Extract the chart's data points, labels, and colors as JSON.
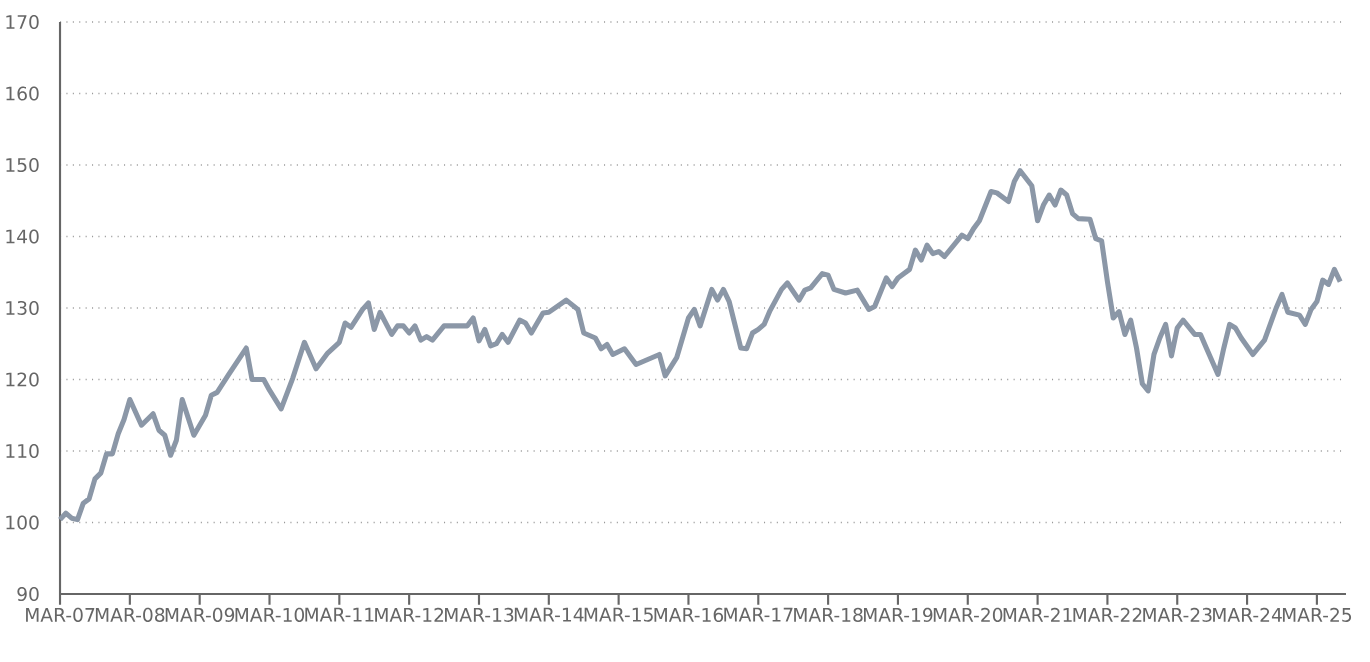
{
  "chart_data": {
    "type": "line",
    "color": "#8b97a7",
    "line_style": "solid",
    "grid": "y",
    "xlim": [
      "2007-03",
      "2025-08"
    ],
    "ylim": [
      90,
      170
    ],
    "yticks": [
      90,
      100,
      110,
      120,
      130,
      140,
      150,
      160,
      170
    ],
    "xticks": [
      {
        "value": "2007-03",
        "label": "MAR-07"
      },
      {
        "value": "2008-03",
        "label": "MAR-08"
      },
      {
        "value": "2009-03",
        "label": "MAR-09"
      },
      {
        "value": "2010-03",
        "label": "MAR-10"
      },
      {
        "value": "2011-03",
        "label": "MAR-11"
      },
      {
        "value": "2012-03",
        "label": "MAR-12"
      },
      {
        "value": "2013-03",
        "label": "MAR-13"
      },
      {
        "value": "2014-03",
        "label": "MAR-14"
      },
      {
        "value": "2015-03",
        "label": "MAR-15"
      },
      {
        "value": "2016-03",
        "label": "MAR-16"
      },
      {
        "value": "2017-03",
        "label": "MAR-17"
      },
      {
        "value": "2018-03",
        "label": "MAR-18"
      },
      {
        "value": "2019-03",
        "label": "MAR-19"
      },
      {
        "value": "2020-03",
        "label": "MAR-20"
      },
      {
        "value": "2021-03",
        "label": "MAR-21"
      },
      {
        "value": "2022-03",
        "label": "MAR-22"
      },
      {
        "value": "2023-03",
        "label": "MAR-23"
      },
      {
        "value": "2024-03",
        "label": "MAR-24"
      },
      {
        "value": "2025-03",
        "label": "MAR-25"
      }
    ],
    "x": [
      "2007-03",
      "2007-04",
      "2007-05",
      "2007-06",
      "2007-07",
      "2007-08",
      "2007-09",
      "2007-10",
      "2007-11",
      "2007-12",
      "2008-01",
      "2008-02",
      "2008-03",
      "2008-05",
      "2008-07",
      "2008-08",
      "2008-09",
      "2008-10",
      "2008-11",
      "2008-12",
      "2009-02",
      "2009-04",
      "2009-05",
      "2009-06",
      "2009-08",
      "2009-11",
      "2009-12",
      "2010-02",
      "2010-03",
      "2010-05",
      "2010-07",
      "2010-09",
      "2010-11",
      "2011-01",
      "2011-03",
      "2011-04",
      "2011-05",
      "2011-07",
      "2011-08",
      "2011-09",
      "2011-10",
      "2011-12",
      "2012-01",
      "2012-02",
      "2012-03",
      "2012-04",
      "2012-05",
      "2012-06",
      "2012-07",
      "2012-09",
      "2013-01",
      "2013-02",
      "2013-03",
      "2013-04",
      "2013-05",
      "2013-06",
      "2013-07",
      "2013-08",
      "2013-10",
      "2013-11",
      "2013-12",
      "2014-02",
      "2014-03",
      "2014-06",
      "2014-08",
      "2014-09",
      "2014-11",
      "2014-12",
      "2015-01",
      "2015-02",
      "2015-04",
      "2015-06",
      "2015-08",
      "2015-10",
      "2015-11",
      "2016-01",
      "2016-03",
      "2016-04",
      "2016-05",
      "2016-07",
      "2016-08",
      "2016-09",
      "2016-10",
      "2016-12",
      "2017-01",
      "2017-02",
      "2017-03",
      "2017-04",
      "2017-05",
      "2017-07",
      "2017-08",
      "2017-10",
      "2017-11",
      "2017-12",
      "2018-02",
      "2018-03",
      "2018-04",
      "2018-06",
      "2018-08",
      "2018-10",
      "2018-11",
      "2019-01",
      "2019-02",
      "2019-03",
      "2019-05",
      "2019-06",
      "2019-07",
      "2019-08",
      "2019-09",
      "2019-10",
      "2019-11",
      "2020-02",
      "2020-03",
      "2020-04",
      "2020-05",
      "2020-07",
      "2020-08",
      "2020-10",
      "2020-11",
      "2020-12",
      "2021-02",
      "2021-03",
      "2021-04",
      "2021-05",
      "2021-06",
      "2021-07",
      "2021-08",
      "2021-09",
      "2021-10",
      "2021-12",
      "2022-01",
      "2022-02",
      "2022-03",
      "2022-04",
      "2022-05",
      "2022-06",
      "2022-07",
      "2022-08",
      "2022-09",
      "2022-10",
      "2022-11",
      "2022-12",
      "2023-01",
      "2023-02",
      "2023-03",
      "2023-04",
      "2023-06",
      "2023-07",
      "2023-08",
      "2023-10",
      "2023-11",
      "2023-12",
      "2024-01",
      "2024-02",
      "2024-04",
      "2024-06",
      "2024-08",
      "2024-09",
      "2024-10",
      "2024-12",
      "2025-01",
      "2025-02",
      "2025-03",
      "2025-04",
      "2025-05",
      "2025-06",
      "2025-07"
    ],
    "values": [
      100.4,
      101.3,
      100.6,
      100.4,
      102.7,
      103.3,
      106.1,
      106.9,
      109.6,
      109.6,
      112.4,
      114.4,
      117.2,
      113.6,
      115.2,
      112.9,
      112.2,
      109.4,
      111.5,
      117.2,
      112.2,
      115,
      117.8,
      118.2,
      120.7,
      124.4,
      120,
      120,
      118.5,
      115.9,
      120.2,
      125.2,
      121.5,
      123.7,
      125.2,
      127.9,
      127.3,
      129.8,
      130.7,
      127,
      129.4,
      126.3,
      127.5,
      127.5,
      126.5,
      127.5,
      125.5,
      126,
      125.5,
      127.5,
      127.5,
      128.6,
      125.4,
      127,
      124.7,
      125,
      126.3,
      125.2,
      128.3,
      127.9,
      126.5,
      129.3,
      129.4,
      131.1,
      129.8,
      126.5,
      125.8,
      124.3,
      124.9,
      123.5,
      124.3,
      122.1,
      122.8,
      123.5,
      120.5,
      123.1,
      128.6,
      129.8,
      127.5,
      132.6,
      131.1,
      132.6,
      130.9,
      124.4,
      124.3,
      126.5,
      127,
      127.7,
      129.6,
      132.6,
      133.5,
      131.1,
      132.5,
      132.8,
      134.8,
      134.6,
      132.6,
      132.1,
      132.5,
      129.8,
      130.2,
      134.2,
      133,
      134.2,
      135.4,
      138.1,
      136.7,
      138.8,
      137.6,
      137.9,
      137.2,
      140.2,
      139.7,
      141.1,
      142.2,
      146.3,
      146.1,
      144.9,
      147.7,
      149.2,
      147.1,
      142.2,
      144.4,
      145.8,
      144.4,
      146.5,
      145.8,
      143.2,
      142.5,
      142.4,
      139.7,
      139.4,
      133.7,
      128.6,
      129.5,
      126.3,
      128.3,
      124.4,
      119.4,
      118.4,
      123.5,
      125.8,
      127.7,
      123.3,
      127.2,
      128.3,
      126.3,
      126.3,
      124.4,
      120.7,
      124.4,
      127.7,
      127.2,
      125.8,
      123.5,
      125.5,
      130,
      131.9,
      129.4,
      129,
      127.7,
      129.8,
      130.9,
      133.9,
      133.3,
      135.4,
      133.7
    ]
  }
}
